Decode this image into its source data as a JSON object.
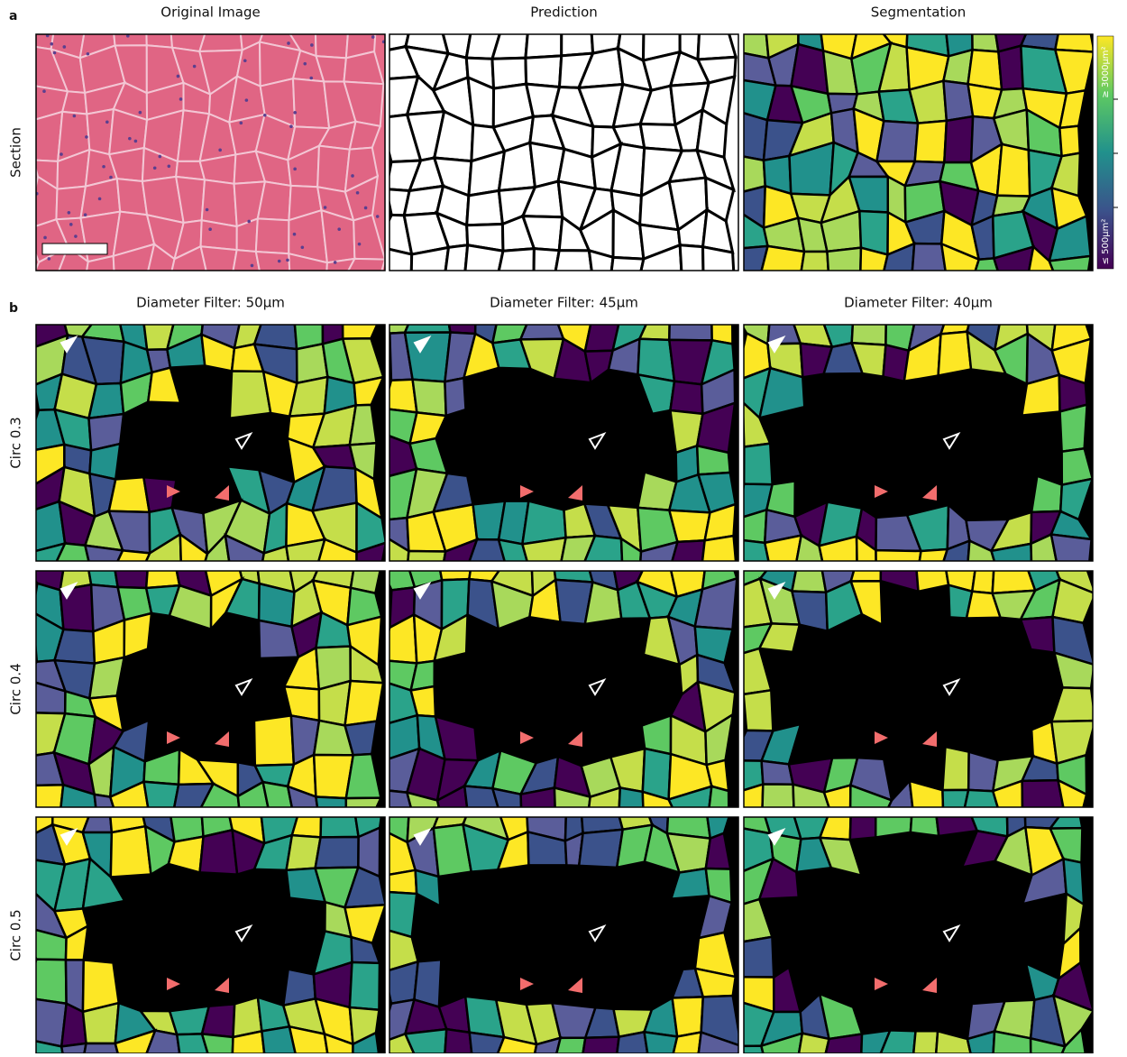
{
  "panel_a": {
    "label": "a",
    "columns": [
      "Original Image",
      "Prediction",
      "Segmentation"
    ],
    "row_label": "Section",
    "colorbar": {
      "max_label": "≥ 3000µm²",
      "min_label": "≤ 500µm²"
    }
  },
  "panel_b": {
    "label": "b",
    "columns": [
      "Diameter Filter: 50µm",
      "Diameter Filter: 45µm",
      "Diameter Filter: 40µm"
    ],
    "rows": [
      "Circ 0.3",
      "Circ 0.4",
      "Circ 0.5"
    ]
  }
}
